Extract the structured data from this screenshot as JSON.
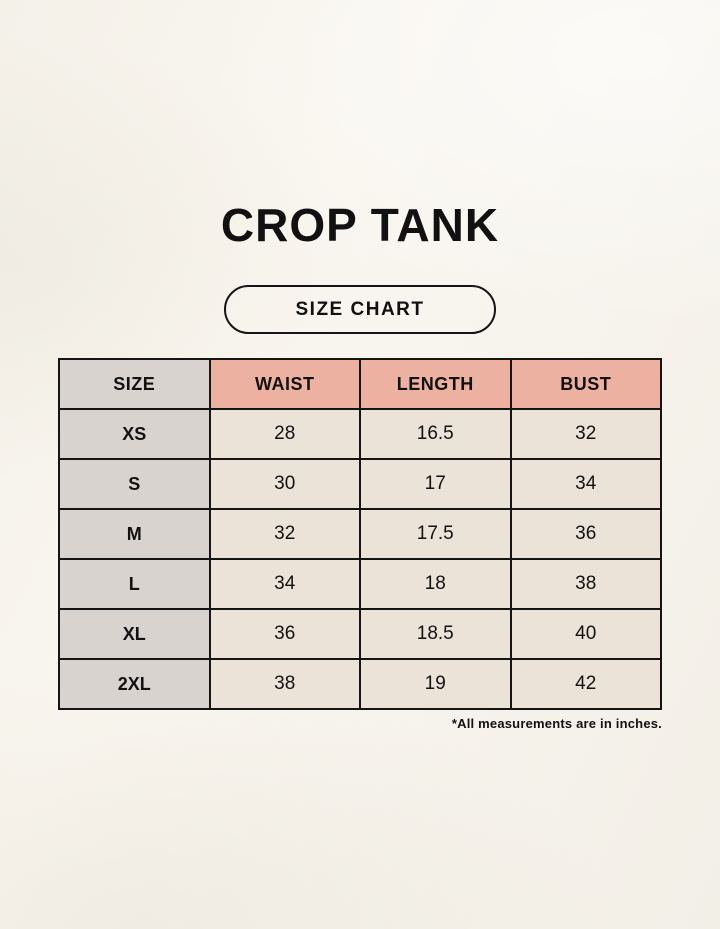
{
  "page": {
    "title": "CROP TANK",
    "badge_label": "SIZE CHART",
    "footnote": "*All measurements are in inches."
  },
  "colors": {
    "background": "#f7f4ed",
    "size_column": "#d8d3cf",
    "header_pink": "#edb1a2",
    "data_cell_cream": "#ebe3d8",
    "border": "#151515",
    "text": "#111111"
  },
  "chart_data": {
    "type": "table",
    "title": "CROP TANK — SIZE CHART",
    "columns": [
      "SIZE",
      "WAIST",
      "LENGTH",
      "BUST"
    ],
    "rows": [
      [
        "XS",
        "28",
        "16.5",
        "32"
      ],
      [
        "S",
        "30",
        "17",
        "34"
      ],
      [
        "M",
        "32",
        "17.5",
        "36"
      ],
      [
        "L",
        "34",
        "18",
        "38"
      ],
      [
        "XL",
        "36",
        "18.5",
        "40"
      ],
      [
        "2XL",
        "38",
        "19",
        "42"
      ]
    ],
    "units": "inches",
    "layout_hints": {
      "size_column_shaded": true,
      "header_row_shaded_pink_except_size": true,
      "grid": true
    }
  }
}
